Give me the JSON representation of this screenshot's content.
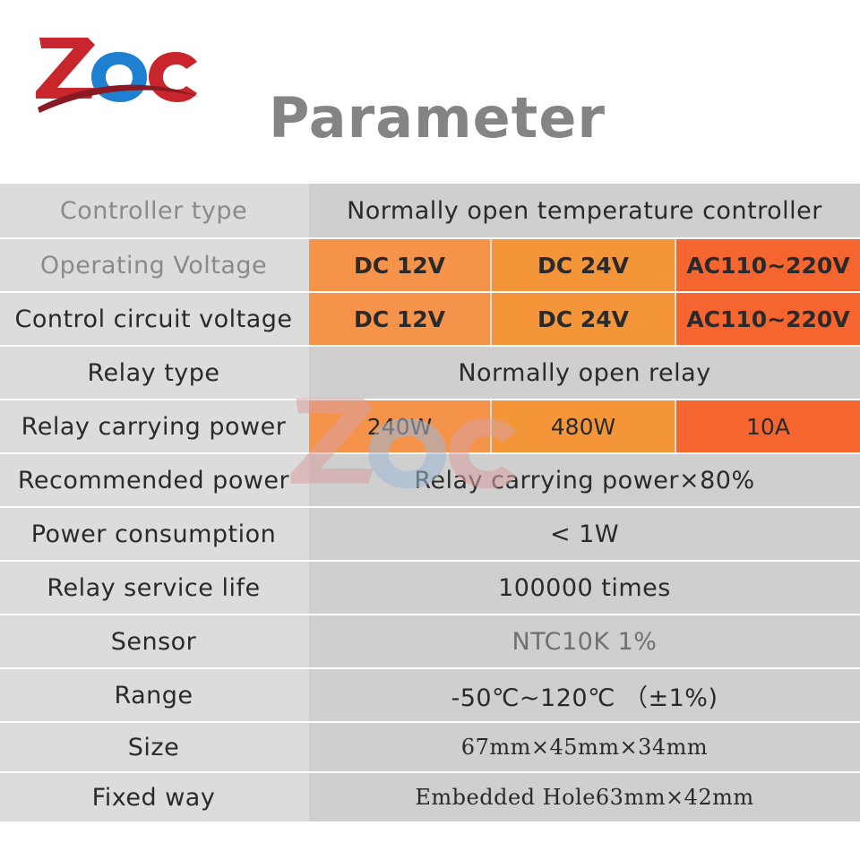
{
  "brand": {
    "logo_text": "ZQC"
  },
  "title": "Parameter",
  "colors": {
    "orange_light": "#f5934a",
    "orange": "#f5953a",
    "red_orange": "#f46530",
    "gray_left": "#dcdcdc",
    "gray_right": "#cfcfcf"
  },
  "rows": [
    {
      "label": "Controller type",
      "value": "Normally open   temperature controller"
    },
    {
      "label": "Operating Voltage",
      "values": [
        "DC 12V",
        "DC 24V",
        "AC110~220V"
      ]
    },
    {
      "label": "Control circuit voltage",
      "values": [
        "DC 12V",
        "DC 24V",
        "AC110~220V"
      ]
    },
    {
      "label": "Relay type",
      "value": "Normally open relay"
    },
    {
      "label": "Relay carrying power",
      "values": [
        "240W",
        "480W",
        "10A"
      ]
    },
    {
      "label": "Recommended power",
      "value": "Relay carrying power×80%"
    },
    {
      "label": "Power consumption",
      "value": "< 1W"
    },
    {
      "label": "Relay service life",
      "value": "100000 times"
    },
    {
      "label": "Sensor",
      "value": "NTC10K 1%"
    },
    {
      "label": "Range",
      "value": "-50℃~120℃ （±1%)"
    },
    {
      "label": "Size",
      "value": "67mm×45mm×34mm"
    },
    {
      "label": "Fixed way",
      "value": "Embedded   Hole63mm×42mm"
    }
  ]
}
